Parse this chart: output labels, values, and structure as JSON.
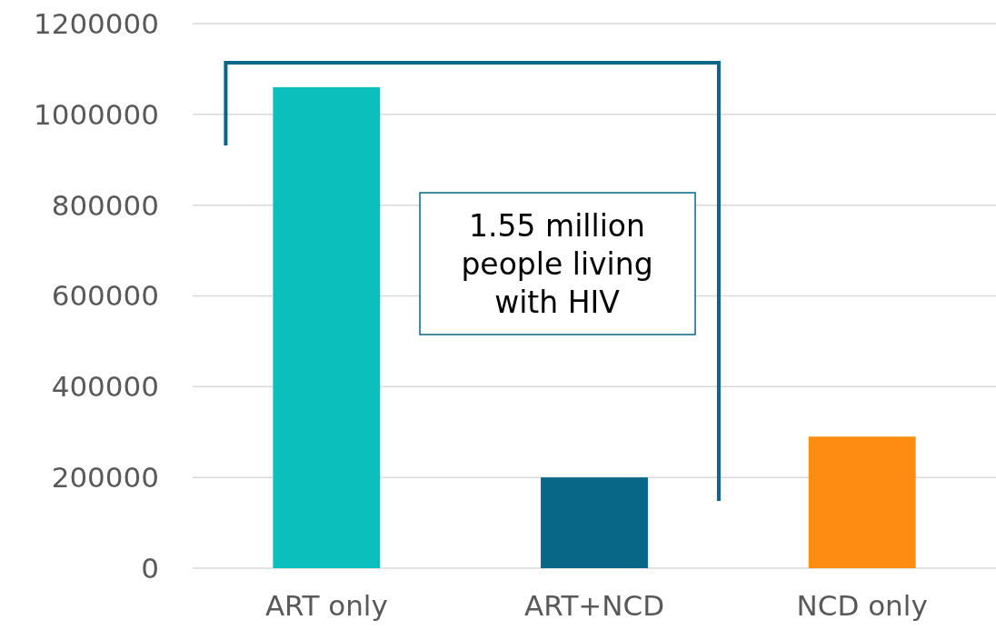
{
  "chart_data": {
    "type": "bar",
    "categories": [
      "ART only",
      "ART+NCD",
      "NCD only"
    ],
    "values": [
      1060000,
      200000,
      290000
    ],
    "colors": [
      "#0bbfbc",
      "#086686",
      "#ff8c12"
    ],
    "ylim": [
      0,
      1200000
    ],
    "yticks": [
      0,
      200000,
      400000,
      600000,
      800000,
      1000000,
      1200000
    ],
    "grid": "y",
    "annotations": [
      "1.55 million people living with HIV"
    ]
  }
}
